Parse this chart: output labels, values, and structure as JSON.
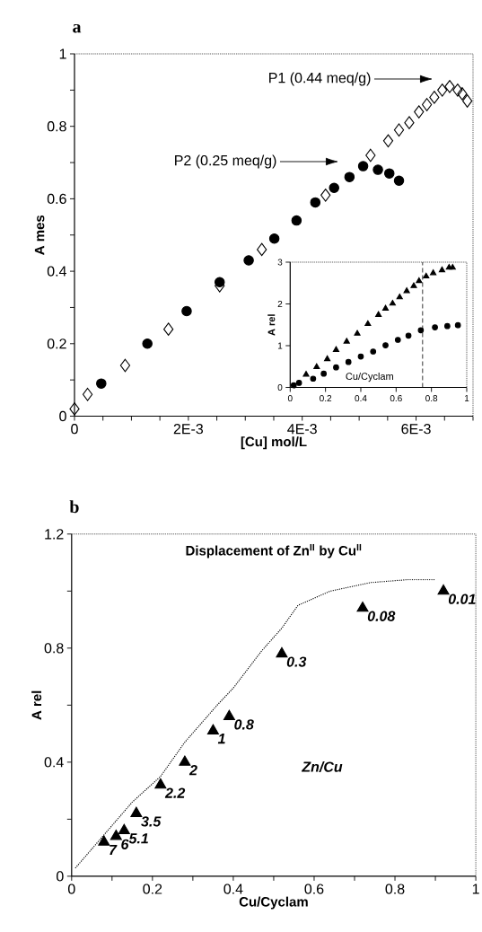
{
  "chart_data": [
    {
      "type": "scatter",
      "title": "a",
      "xlabel": "[Cu] mol/L",
      "ylabel": "A mes",
      "xlim": [
        0,
        0.007
      ],
      "ylim": [
        0,
        1
      ],
      "xticks": [
        0,
        {
          "value": 0.0005,
          "label": null
        },
        {
          "value": 0.001,
          "label": null
        },
        {
          "value": 0.0015,
          "label": null
        },
        {
          "value": 0.002,
          "label": "2E-3"
        },
        {
          "value": 0.0025,
          "label": null
        },
        {
          "value": 0.003,
          "label": null
        },
        {
          "value": 0.0035,
          "label": null
        },
        {
          "value": 0.004,
          "label": "4E-3"
        },
        {
          "value": 0.0045,
          "label": null
        },
        {
          "value": 0.005,
          "label": null
        },
        {
          "value": 0.0055,
          "label": null
        },
        {
          "value": 0.006,
          "label": "6E-3"
        },
        {
          "value": 0.0065,
          "label": null
        },
        {
          "value": 0.007,
          "label": null
        }
      ],
      "yticks": [
        0,
        {
          "value": 0.1,
          "label": null
        },
        0.2,
        {
          "value": 0.3,
          "label": null
        },
        0.4,
        {
          "value": 0.5,
          "label": null
        },
        0.6,
        {
          "value": 0.7,
          "label": null
        },
        0.8,
        {
          "value": 0.9,
          "label": null
        },
        1
      ],
      "series": [
        {
          "color": "#000000",
          "marker": "diamond",
          "x": [
            0,
            0.00023,
            0.00089,
            0.00165,
            0.00255,
            0.00329,
            0.00441,
            0.0052,
            0.00551,
            0.0057,
            0.00588,
            0.00605,
            0.00619,
            0.00632,
            0.00646,
            0.00659,
            0.00673,
            0.00681,
            0.0069
          ],
          "values": [
            0.02,
            0.06,
            0.14,
            0.24,
            0.36,
            0.46,
            0.61,
            0.72,
            0.76,
            0.79,
            0.81,
            0.84,
            0.86,
            0.88,
            0.9,
            0.91,
            0.9,
            0.89,
            0.87
          ]
        },
        {
          "color": "#000000",
          "marker": "circle",
          "x": [
            0.00047,
            0.00128,
            0.00197,
            0.00255,
            0.00306,
            0.00351,
            0.0039,
            0.00423,
            0.00456,
            0.00483,
            0.00507,
            0.00533,
            0.00553,
            0.0057
          ],
          "values": [
            0.09,
            0.2,
            0.29,
            0.37,
            0.43,
            0.49,
            0.54,
            0.59,
            0.63,
            0.66,
            0.69,
            0.68,
            0.67,
            0.65
          ]
        }
      ],
      "annotations": [
        "P1 (0.44 meq/g)",
        "P2 (0.25 meq/g)"
      ]
    },
    {
      "type": "scatter",
      "xlabel": "Cu/Cyclam",
      "ylabel": "A rel",
      "xlim": [
        0,
        1
      ],
      "ylim": [
        0,
        3
      ],
      "xticks": [
        0,
        0.2,
        0.4,
        0.6,
        0.8,
        1
      ],
      "yticks": [
        0,
        1,
        2,
        3
      ],
      "series": [
        {
          "color": "#000000",
          "marker": "triangle",
          "x": [
            0.09,
            0.15,
            0.21,
            0.26,
            0.32,
            0.38,
            0.44,
            0.5,
            0.54,
            0.58,
            0.62,
            0.66,
            0.7,
            0.73,
            0.77,
            0.81,
            0.86,
            0.9,
            0.92
          ],
          "values": [
            0.31,
            0.49,
            0.68,
            0.9,
            1.1,
            1.29,
            1.52,
            1.74,
            1.89,
            2.01,
            2.16,
            2.31,
            2.43,
            2.55,
            2.66,
            2.74,
            2.81,
            2.87,
            2.87
          ]
        },
        {
          "color": "#000000",
          "marker": "circle",
          "x": [
            0.02,
            0.05,
            0.13,
            0.19,
            0.26,
            0.33,
            0.4,
            0.47,
            0.54,
            0.61,
            0.67,
            0.74,
            0.82,
            0.89,
            0.95
          ],
          "values": [
            0.05,
            0.11,
            0.21,
            0.33,
            0.48,
            0.61,
            0.74,
            0.86,
            1.01,
            1.14,
            1.24,
            1.37,
            1.44,
            1.47,
            1.49
          ]
        }
      ],
      "ref_lines": [
        {
          "axis": "x",
          "value": 0.75,
          "line_style": "dashed"
        }
      ]
    },
    {
      "type": "scatter",
      "title": "b",
      "subtitle": "Displacement of Zn$^{II}$ by Cu$^{II}$",
      "xlabel": "Cu/Cyclam",
      "ylabel": "A rel",
      "xlim": [
        0,
        1
      ],
      "ylim": [
        0,
        1.2
      ],
      "xticks": [
        0,
        {
          "value": 0.1,
          "label": null
        },
        0.2,
        {
          "value": 0.3,
          "label": null
        },
        0.4,
        {
          "value": 0.5,
          "label": null
        },
        0.6,
        {
          "value": 0.7,
          "label": null
        },
        0.8,
        {
          "value": 0.9,
          "label": null
        },
        1
      ],
      "yticks": [
        0,
        {
          "value": 0.2,
          "label": null
        },
        0.4,
        {
          "value": 0.6,
          "label": null
        },
        0.8,
        {
          "value": 1.0,
          "label": null
        },
        1.2
      ],
      "series": [
        {
          "type": "line",
          "color": "#000000",
          "marker": "none",
          "line_style": "dotted",
          "x": [
            0.01,
            0.15,
            0.22,
            0.28,
            0.36,
            0.4,
            0.47,
            0.52,
            0.56,
            0.64,
            0.74,
            0.83,
            0.9
          ],
          "values": [
            0.03,
            0.26,
            0.35,
            0.47,
            0.6,
            0.66,
            0.79,
            0.87,
            0.95,
            1.0,
            1.03,
            1.04,
            1.04
          ]
        },
        {
          "color": "#000000",
          "marker": "triangle",
          "x": [
            0.08,
            0.11,
            0.13,
            0.16,
            0.22,
            0.28,
            0.35,
            0.39,
            0.52,
            0.72,
            0.92
          ],
          "values": [
            0.12,
            0.14,
            0.16,
            0.22,
            0.32,
            0.4,
            0.51,
            0.56,
            0.78,
            0.94,
            1.0
          ]
        }
      ],
      "annotations": [
        {
          "text": "7",
          "x": 0.08,
          "y": 0.12
        },
        {
          "text": "6",
          "x": 0.11,
          "y": 0.14
        },
        {
          "text": "5.1",
          "x": 0.13,
          "y": 0.16
        },
        {
          "text": "3.5",
          "x": 0.16,
          "y": 0.22
        },
        {
          "text": "2.2",
          "x": 0.22,
          "y": 0.32
        },
        {
          "text": "2",
          "x": 0.28,
          "y": 0.4
        },
        {
          "text": "1",
          "x": 0.35,
          "y": 0.51
        },
        {
          "text": "0.8",
          "x": 0.39,
          "y": 0.56
        },
        {
          "text": "0.3",
          "x": 0.52,
          "y": 0.78
        },
        {
          "text": "0.08",
          "x": 0.72,
          "y": 0.94
        },
        {
          "text": "0.01",
          "x": 0.92,
          "y": 1.0
        },
        "Zn/Cu"
      ]
    }
  ]
}
